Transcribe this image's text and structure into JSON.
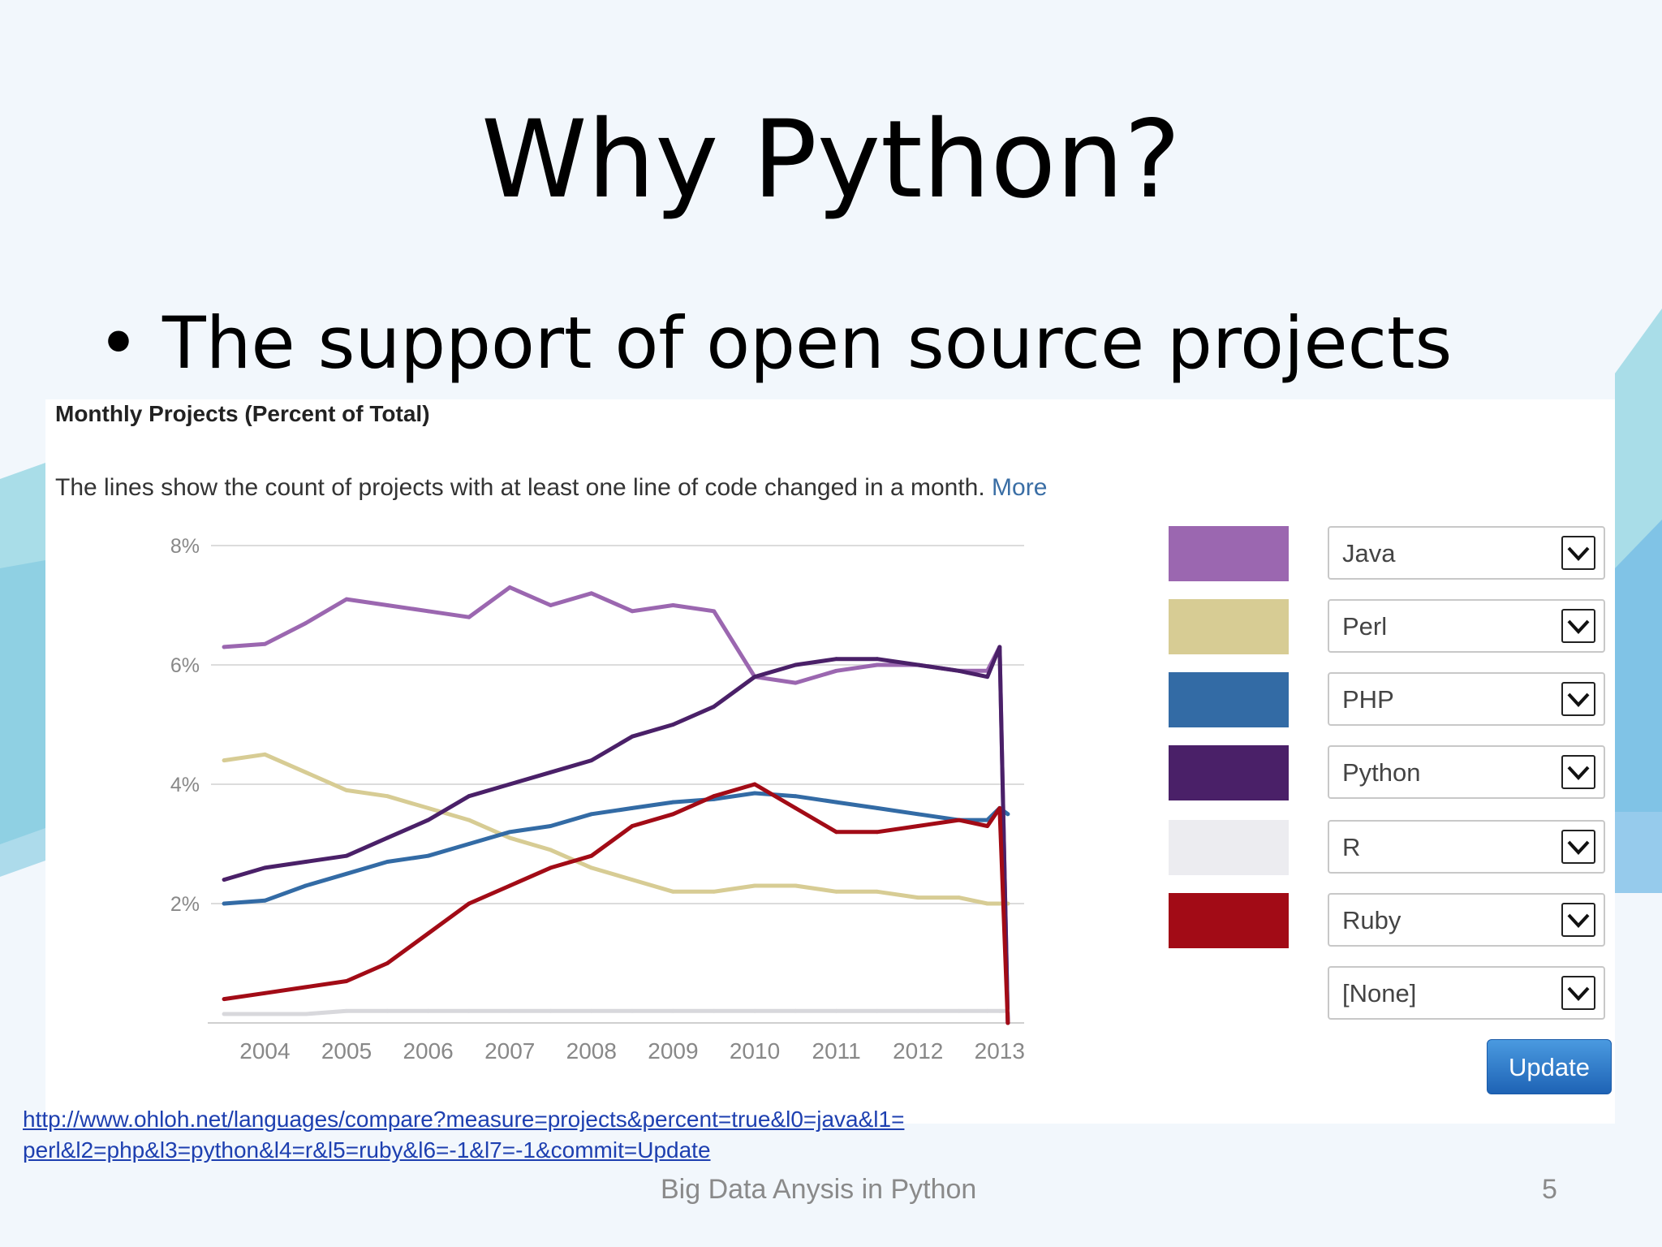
{
  "slide": {
    "title": "Why Python?",
    "bullet_marker": "•",
    "bullet": "The support of open source projects",
    "footer": "Big Data Anysis in Python",
    "page_number": "5"
  },
  "panel": {
    "heading": "Monthly Projects (Percent of Total)",
    "description": "The lines show the count of projects with at least one line of code changed in a month.",
    "more_link": "More",
    "update_label": "Update"
  },
  "selectors": [
    {
      "label": "Java",
      "color": "#9b67b0"
    },
    {
      "label": "Perl",
      "color": "#d7cc94"
    },
    {
      "label": "PHP",
      "color": "#336ba5"
    },
    {
      "label": "Python",
      "color": "#4a2068"
    },
    {
      "label": "R",
      "color": "#ececf0"
    },
    {
      "label": "Ruby",
      "color": "#a20b16"
    },
    {
      "label": "[None]",
      "color": ""
    }
  ],
  "source_link": {
    "line1": "http://www.ohloh.net/languages/compare?measure=projects&percent=true&l0=java&l1=",
    "line2": "perl&l2=php&l3=python&l4=r&l5=ruby&l6=-1&l7=-1&commit=Update"
  },
  "chart_data": {
    "type": "line",
    "title": "Monthly Projects (Percent of Total)",
    "xlabel": "",
    "ylabel": "",
    "x_ticks": [
      "2004",
      "2005",
      "2006",
      "2007",
      "2008",
      "2009",
      "2010",
      "2011",
      "2012",
      "2013"
    ],
    "y_ticks": [
      "8%",
      "6%",
      "4%",
      "2%"
    ],
    "xlim": [
      2003.3,
      2013.3
    ],
    "ylim": [
      0,
      8
    ],
    "grid": true,
    "legend": "right",
    "x": [
      2003.5,
      2004.0,
      2004.5,
      2005.0,
      2005.5,
      2006.0,
      2006.5,
      2007.0,
      2007.5,
      2008.0,
      2008.5,
      2009.0,
      2009.5,
      2010.0,
      2010.5,
      2011.0,
      2011.5,
      2012.0,
      2012.5,
      2012.85,
      2013.0,
      2013.1
    ],
    "series": [
      {
        "name": "Java",
        "color": "#9b67b0",
        "values": [
          6.3,
          6.35,
          6.7,
          7.1,
          7.0,
          6.9,
          6.8,
          7.3,
          7.0,
          7.2,
          6.9,
          7.0,
          6.9,
          5.8,
          5.7,
          5.9,
          6.0,
          6.0,
          5.9,
          5.9,
          6.3,
          0.0
        ]
      },
      {
        "name": "Perl",
        "color": "#d7cc94",
        "values": [
          4.4,
          4.5,
          4.2,
          3.9,
          3.8,
          3.6,
          3.4,
          3.1,
          2.9,
          2.6,
          2.4,
          2.2,
          2.2,
          2.3,
          2.3,
          2.2,
          2.2,
          2.1,
          2.1,
          2.0,
          2.0,
          2.0
        ]
      },
      {
        "name": "PHP",
        "color": "#336ba5",
        "values": [
          2.0,
          2.05,
          2.3,
          2.5,
          2.7,
          2.8,
          3.0,
          3.2,
          3.3,
          3.5,
          3.6,
          3.7,
          3.75,
          3.85,
          3.8,
          3.7,
          3.6,
          3.5,
          3.4,
          3.4,
          3.6,
          3.5
        ]
      },
      {
        "name": "Python",
        "color": "#4a2068",
        "values": [
          2.4,
          2.6,
          2.7,
          2.8,
          3.1,
          3.4,
          3.8,
          4.0,
          4.2,
          4.4,
          4.8,
          5.0,
          5.3,
          5.8,
          6.0,
          6.1,
          6.1,
          6.0,
          5.9,
          5.8,
          6.3,
          0.0
        ]
      },
      {
        "name": "R",
        "color": "#d8d8dc",
        "values": [
          0.15,
          0.15,
          0.15,
          0.2,
          0.2,
          0.2,
          0.2,
          0.2,
          0.2,
          0.2,
          0.2,
          0.2,
          0.2,
          0.2,
          0.2,
          0.2,
          0.2,
          0.2,
          0.2,
          0.2,
          0.2,
          0.2
        ]
      },
      {
        "name": "Ruby",
        "color": "#a20b16",
        "values": [
          0.4,
          0.5,
          0.6,
          0.7,
          1.0,
          1.5,
          2.0,
          2.3,
          2.6,
          2.8,
          3.3,
          3.5,
          3.8,
          4.0,
          3.6,
          3.2,
          3.2,
          3.3,
          3.4,
          3.3,
          3.6,
          0.0
        ]
      }
    ]
  }
}
